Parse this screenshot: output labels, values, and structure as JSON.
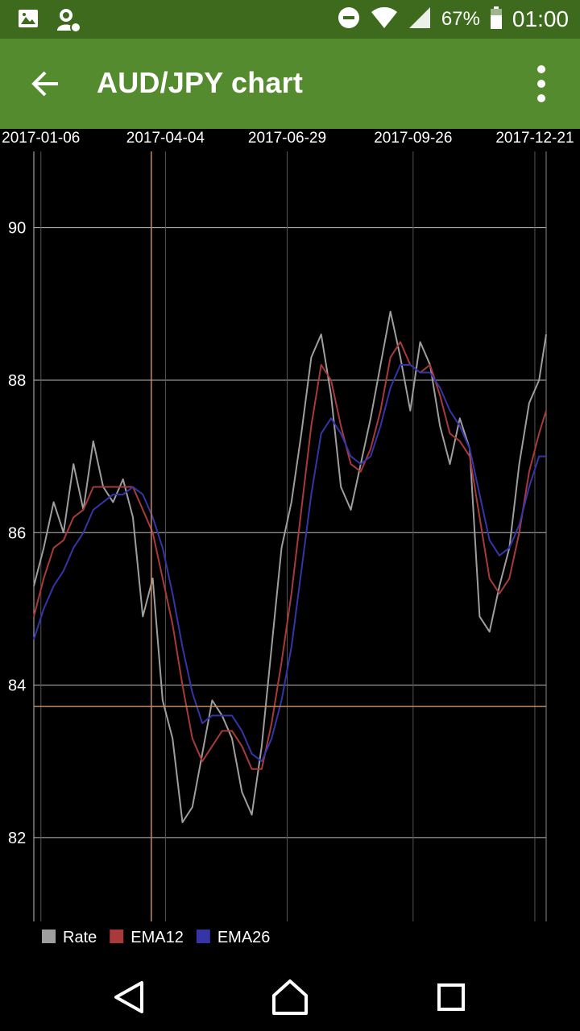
{
  "status_bar": {
    "battery_percent": "67%",
    "time": "01:00",
    "icons": [
      "image-notification-icon",
      "account-notification-icon",
      "do-not-disturb-icon",
      "wifi-icon",
      "cell-signal-icon",
      "battery-icon"
    ]
  },
  "app_bar": {
    "title": "AUD/JPY chart",
    "back_icon": "arrow-back-icon",
    "menu_icon": "more-vert-icon",
    "color": "#558b2f",
    "status_color": "#3e6a1d"
  },
  "nav_bar": {
    "icons": [
      "back-triangle-icon",
      "home-icon",
      "recents-square-icon"
    ]
  },
  "chart_data": {
    "type": "line",
    "title": "AUD/JPY chart",
    "x_type": "date",
    "x_range": [
      "2017-01-01",
      "2017-12-29"
    ],
    "x_ticks": [
      "2017-01-06",
      "2017-04-04",
      "2017-06-29",
      "2017-09-26",
      "2017-12-21"
    ],
    "y_range": [
      80.9,
      91.0
    ],
    "y_ticks": [
      82,
      84,
      86,
      88,
      90
    ],
    "grid": true,
    "crosshair": {
      "x": "2017-03-25",
      "y": 83.72
    },
    "legend_position": "bottom-left",
    "colors": {
      "Rate": "#9e9e9e",
      "EMA12": "#a83a3a",
      "EMA26": "#3535a8",
      "grid": "#bdbdbd",
      "crosshair": "#c08a60"
    },
    "x": [
      "2017-01-01",
      "2017-01-08",
      "2017-01-15",
      "2017-01-22",
      "2017-01-29",
      "2017-02-05",
      "2017-02-12",
      "2017-02-19",
      "2017-02-26",
      "2017-03-05",
      "2017-03-12",
      "2017-03-19",
      "2017-03-26",
      "2017-04-02",
      "2017-04-09",
      "2017-04-16",
      "2017-04-23",
      "2017-04-30",
      "2017-05-07",
      "2017-05-14",
      "2017-05-21",
      "2017-05-28",
      "2017-06-04",
      "2017-06-11",
      "2017-06-18",
      "2017-06-25",
      "2017-07-02",
      "2017-07-09",
      "2017-07-16",
      "2017-07-23",
      "2017-07-30",
      "2017-08-06",
      "2017-08-13",
      "2017-08-20",
      "2017-08-27",
      "2017-09-03",
      "2017-09-10",
      "2017-09-17",
      "2017-09-24",
      "2017-10-01",
      "2017-10-08",
      "2017-10-15",
      "2017-10-22",
      "2017-10-29",
      "2017-11-05",
      "2017-11-12",
      "2017-11-19",
      "2017-11-26",
      "2017-12-03",
      "2017-12-10",
      "2017-12-17",
      "2017-12-24",
      "2017-12-29"
    ],
    "series": [
      {
        "name": "Rate",
        "values": [
          85.3,
          85.8,
          86.4,
          86.0,
          86.9,
          86.3,
          87.2,
          86.6,
          86.4,
          86.7,
          86.2,
          84.9,
          85.4,
          83.8,
          83.3,
          82.2,
          82.4,
          83.1,
          83.8,
          83.6,
          83.3,
          82.6,
          82.3,
          83.2,
          84.5,
          85.8,
          86.4,
          87.3,
          88.3,
          88.6,
          87.8,
          86.6,
          86.3,
          86.9,
          87.5,
          88.2,
          88.9,
          88.3,
          87.6,
          88.5,
          88.2,
          87.4,
          86.9,
          87.5,
          87.1,
          84.9,
          84.7,
          85.3,
          85.8,
          86.9,
          87.7,
          88.0,
          88.6
        ]
      },
      {
        "name": "EMA12",
        "values": [
          84.9,
          85.4,
          85.8,
          85.9,
          86.2,
          86.3,
          86.6,
          86.6,
          86.6,
          86.6,
          86.6,
          86.3,
          86.0,
          85.4,
          84.8,
          84.0,
          83.3,
          83.0,
          83.2,
          83.4,
          83.4,
          83.2,
          82.9,
          82.9,
          83.5,
          84.3,
          85.2,
          86.3,
          87.4,
          88.2,
          88.0,
          87.4,
          86.9,
          86.8,
          87.1,
          87.6,
          88.3,
          88.5,
          88.2,
          88.1,
          88.2,
          87.8,
          87.3,
          87.2,
          87.0,
          86.2,
          85.4,
          85.2,
          85.4,
          86.0,
          86.8,
          87.3,
          87.6
        ]
      },
      {
        "name": "EMA26",
        "values": [
          84.6,
          85.0,
          85.3,
          85.5,
          85.8,
          86.0,
          86.3,
          86.4,
          86.5,
          86.5,
          86.6,
          86.5,
          86.2,
          85.8,
          85.2,
          84.5,
          83.9,
          83.5,
          83.6,
          83.6,
          83.6,
          83.4,
          83.1,
          83.0,
          83.3,
          83.8,
          84.5,
          85.5,
          86.5,
          87.3,
          87.5,
          87.3,
          87.0,
          86.9,
          87.0,
          87.4,
          87.9,
          88.2,
          88.2,
          88.1,
          88.1,
          87.9,
          87.6,
          87.4,
          87.1,
          86.5,
          85.9,
          85.7,
          85.8,
          86.1,
          86.6,
          87.0,
          87.0
        ]
      }
    ]
  }
}
